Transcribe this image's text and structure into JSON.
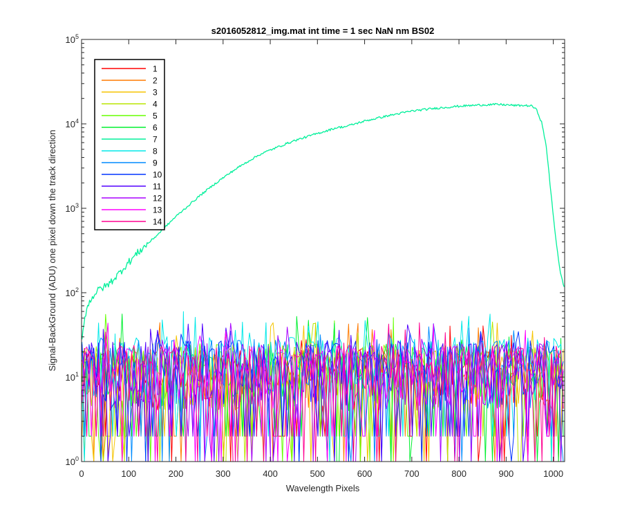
{
  "chart_data": {
    "type": "line",
    "title": "s2016052812_img.mat int time = 1 sec  NaN nm BS02",
    "xlabel": "Wavelength Pixels",
    "ylabel": "Signal-BackGround (ADU) one pixel down the track direction",
    "xlim": [
      0,
      1024
    ],
    "ylim": [
      1,
      100000
    ],
    "yscale": "log",
    "grid": false,
    "legend_position": "top-left",
    "x_ticks": [
      0,
      100,
      200,
      300,
      400,
      500,
      600,
      700,
      800,
      900,
      1000
    ],
    "x_tick_labels": [
      "0",
      "100",
      "200",
      "300",
      "400",
      "500",
      "600",
      "700",
      "800",
      "900",
      "1000"
    ],
    "y_ticks": [
      1,
      10,
      100,
      1000,
      10000,
      100000
    ],
    "y_tick_labels": [
      {
        "base": "10",
        "exp": "0"
      },
      {
        "base": "10",
        "exp": "1"
      },
      {
        "base": "10",
        "exp": "2"
      },
      {
        "base": "10",
        "exp": "3"
      },
      {
        "base": "10",
        "exp": "4"
      },
      {
        "base": "10",
        "exp": "5"
      }
    ],
    "series": [
      {
        "name": "1",
        "color": "#ff0000",
        "noise": {
          "typical": [
            4,
            22
          ],
          "peak": 45
        }
      },
      {
        "name": "2",
        "color": "#ff7a00",
        "noise": {
          "typical": [
            4,
            22
          ],
          "peak": 45
        }
      },
      {
        "name": "3",
        "color": "#f5c400",
        "noise": {
          "typical": [
            4,
            22
          ],
          "peak": 45
        }
      },
      {
        "name": "4",
        "color": "#b8e600",
        "noise": {
          "typical": [
            4,
            24
          ],
          "peak": 50
        }
      },
      {
        "name": "5",
        "color": "#66ff00",
        "noise": {
          "typical": [
            4,
            25
          ],
          "peak": 60
        }
      },
      {
        "name": "6",
        "color": "#00f030",
        "noise": {
          "typical": [
            4,
            25
          ],
          "peak": 60
        }
      },
      {
        "name": "7",
        "color": "#00f09a",
        "data": {
          "x": [
            1,
            5,
            10,
            20,
            30,
            40,
            50,
            60,
            70,
            80,
            90,
            100,
            120,
            140,
            160,
            180,
            200,
            220,
            250,
            280,
            300,
            330,
            360,
            380,
            400,
            430,
            450,
            480,
            500,
            520,
            540,
            560,
            600,
            650,
            700,
            750,
            800,
            850,
            880,
            900,
            920,
            940,
            955,
            965,
            975,
            985,
            995,
            1005,
            1015,
            1024
          ],
          "y": [
            28,
            45,
            62,
            85,
            100,
            112,
            118,
            130,
            150,
            170,
            200,
            230,
            300,
            380,
            480,
            620,
            800,
            1000,
            1400,
            1900,
            2300,
            3000,
            3800,
            4400,
            4900,
            5700,
            6300,
            7100,
            7700,
            8300,
            9000,
            9300,
            10800,
            12500,
            14200,
            15300,
            16200,
            16800,
            17000,
            16800,
            16500,
            16500,
            16300,
            14500,
            10500,
            5500,
            1500,
            450,
            170,
            110
          ]
        }
      },
      {
        "name": "8",
        "color": "#00e8e8",
        "noise": {
          "typical": [
            5,
            30
          ],
          "peak": 60
        }
      },
      {
        "name": "9",
        "color": "#008cff",
        "noise": {
          "typical": [
            4,
            28
          ],
          "peak": 50
        }
      },
      {
        "name": "10",
        "color": "#0033ff",
        "noise": {
          "typical": [
            4,
            28
          ],
          "peak": 50
        }
      },
      {
        "name": "11",
        "color": "#5000ff",
        "noise": {
          "typical": [
            4,
            26
          ],
          "peak": 45
        }
      },
      {
        "name": "12",
        "color": "#a800ff",
        "noise": {
          "typical": [
            4,
            25
          ],
          "peak": 45
        }
      },
      {
        "name": "13",
        "color": "#ff00ff",
        "noise": {
          "typical": [
            4,
            24
          ],
          "peak": 45
        }
      },
      {
        "name": "14",
        "color": "#ff0090",
        "noise": {
          "typical": [
            4,
            24
          ],
          "peak": 45
        }
      }
    ]
  }
}
